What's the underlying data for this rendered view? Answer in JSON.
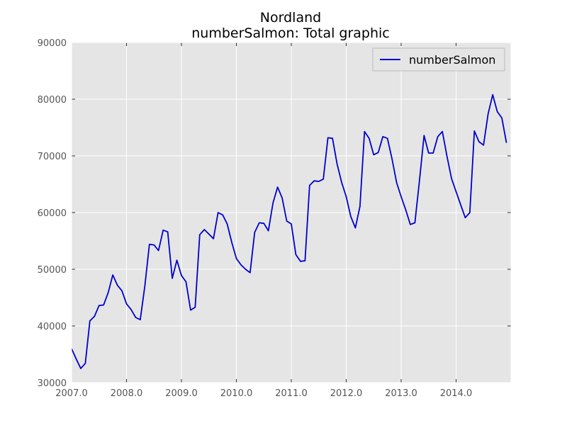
{
  "chart_data": {
    "type": "line",
    "title": "Nordland",
    "subtitle": "numberSalmon: Total graphic",
    "xlabel": "",
    "ylabel": "",
    "xlim": [
      2007.0,
      2015.0
    ],
    "ylim": [
      30000,
      90000
    ],
    "x_ticks": [
      2007.0,
      2008.0,
      2009.0,
      2010.0,
      2011.0,
      2012.0,
      2013.0,
      2014.0
    ],
    "x_tick_labels": [
      "2007.0",
      "2008.0",
      "2009.0",
      "2010.0",
      "2011.0",
      "2012.0",
      "2013.0",
      "2014.0"
    ],
    "y_ticks": [
      30000,
      40000,
      50000,
      60000,
      70000,
      80000,
      90000
    ],
    "y_tick_labels": [
      "30000",
      "40000",
      "50000",
      "60000",
      "70000",
      "80000",
      "90000"
    ],
    "grid": true,
    "legend": "top-right",
    "colors": {
      "plot_bg": "#e5e5e5",
      "grid": "#ffffff",
      "line": "#0000cc"
    },
    "series": [
      {
        "name": "numberSalmon",
        "points": [
          [
            2007.0,
            36000
          ],
          [
            2007.083,
            34200
          ],
          [
            2007.167,
            32500
          ],
          [
            2007.25,
            33400
          ],
          [
            2007.333,
            40900
          ],
          [
            2007.417,
            41700
          ],
          [
            2007.5,
            43600
          ],
          [
            2007.583,
            43700
          ],
          [
            2007.667,
            45900
          ],
          [
            2007.75,
            49000
          ],
          [
            2007.833,
            47200
          ],
          [
            2007.917,
            46200
          ],
          [
            2008.0,
            43900
          ],
          [
            2008.083,
            42900
          ],
          [
            2008.167,
            41500
          ],
          [
            2008.25,
            41100
          ],
          [
            2008.333,
            47000
          ],
          [
            2008.417,
            54400
          ],
          [
            2008.5,
            54300
          ],
          [
            2008.583,
            53300
          ],
          [
            2008.667,
            56900
          ],
          [
            2008.75,
            56600
          ],
          [
            2008.833,
            48400
          ],
          [
            2008.917,
            51600
          ],
          [
            2009.0,
            48900
          ],
          [
            2009.083,
            47800
          ],
          [
            2009.167,
            42800
          ],
          [
            2009.25,
            43300
          ],
          [
            2009.333,
            56100
          ],
          [
            2009.417,
            57000
          ],
          [
            2009.5,
            56200
          ],
          [
            2009.583,
            55400
          ],
          [
            2009.667,
            60000
          ],
          [
            2009.75,
            59600
          ],
          [
            2009.833,
            58000
          ],
          [
            2009.917,
            54700
          ],
          [
            2010.0,
            51900
          ],
          [
            2010.083,
            50800
          ],
          [
            2010.167,
            50000
          ],
          [
            2010.25,
            49400
          ],
          [
            2010.333,
            56500
          ],
          [
            2010.417,
            58200
          ],
          [
            2010.5,
            58100
          ],
          [
            2010.583,
            56800
          ],
          [
            2010.667,
            61700
          ],
          [
            2010.75,
            64500
          ],
          [
            2010.833,
            62600
          ],
          [
            2010.917,
            58500
          ],
          [
            2011.0,
            58000
          ],
          [
            2011.083,
            52600
          ],
          [
            2011.167,
            51400
          ],
          [
            2011.25,
            51500
          ],
          [
            2011.333,
            64800
          ],
          [
            2011.417,
            65600
          ],
          [
            2011.5,
            65500
          ],
          [
            2011.583,
            65900
          ],
          [
            2011.667,
            73200
          ],
          [
            2011.75,
            73100
          ],
          [
            2011.833,
            68600
          ],
          [
            2011.917,
            65300
          ],
          [
            2012.0,
            62800
          ],
          [
            2012.083,
            59300
          ],
          [
            2012.167,
            57300
          ],
          [
            2012.25,
            61100
          ],
          [
            2012.333,
            74300
          ],
          [
            2012.417,
            73100
          ],
          [
            2012.5,
            70200
          ],
          [
            2012.583,
            70600
          ],
          [
            2012.667,
            73400
          ],
          [
            2012.75,
            73100
          ],
          [
            2012.833,
            69500
          ],
          [
            2012.917,
            65300
          ],
          [
            2013.0,
            62800
          ],
          [
            2013.083,
            60500
          ],
          [
            2013.167,
            57900
          ],
          [
            2013.25,
            58200
          ],
          [
            2013.333,
            65600
          ],
          [
            2013.417,
            73600
          ],
          [
            2013.5,
            70500
          ],
          [
            2013.583,
            70500
          ],
          [
            2013.667,
            73400
          ],
          [
            2013.75,
            74300
          ],
          [
            2013.833,
            70000
          ],
          [
            2013.917,
            66000
          ],
          [
            2014.0,
            63700
          ],
          [
            2014.083,
            61400
          ],
          [
            2014.167,
            59100
          ],
          [
            2014.25,
            60000
          ],
          [
            2014.333,
            74400
          ],
          [
            2014.417,
            72500
          ],
          [
            2014.5,
            71900
          ],
          [
            2014.583,
            77400
          ],
          [
            2014.667,
            80800
          ],
          [
            2014.75,
            77800
          ],
          [
            2014.833,
            76700
          ],
          [
            2014.917,
            72300
          ]
        ]
      }
    ]
  }
}
